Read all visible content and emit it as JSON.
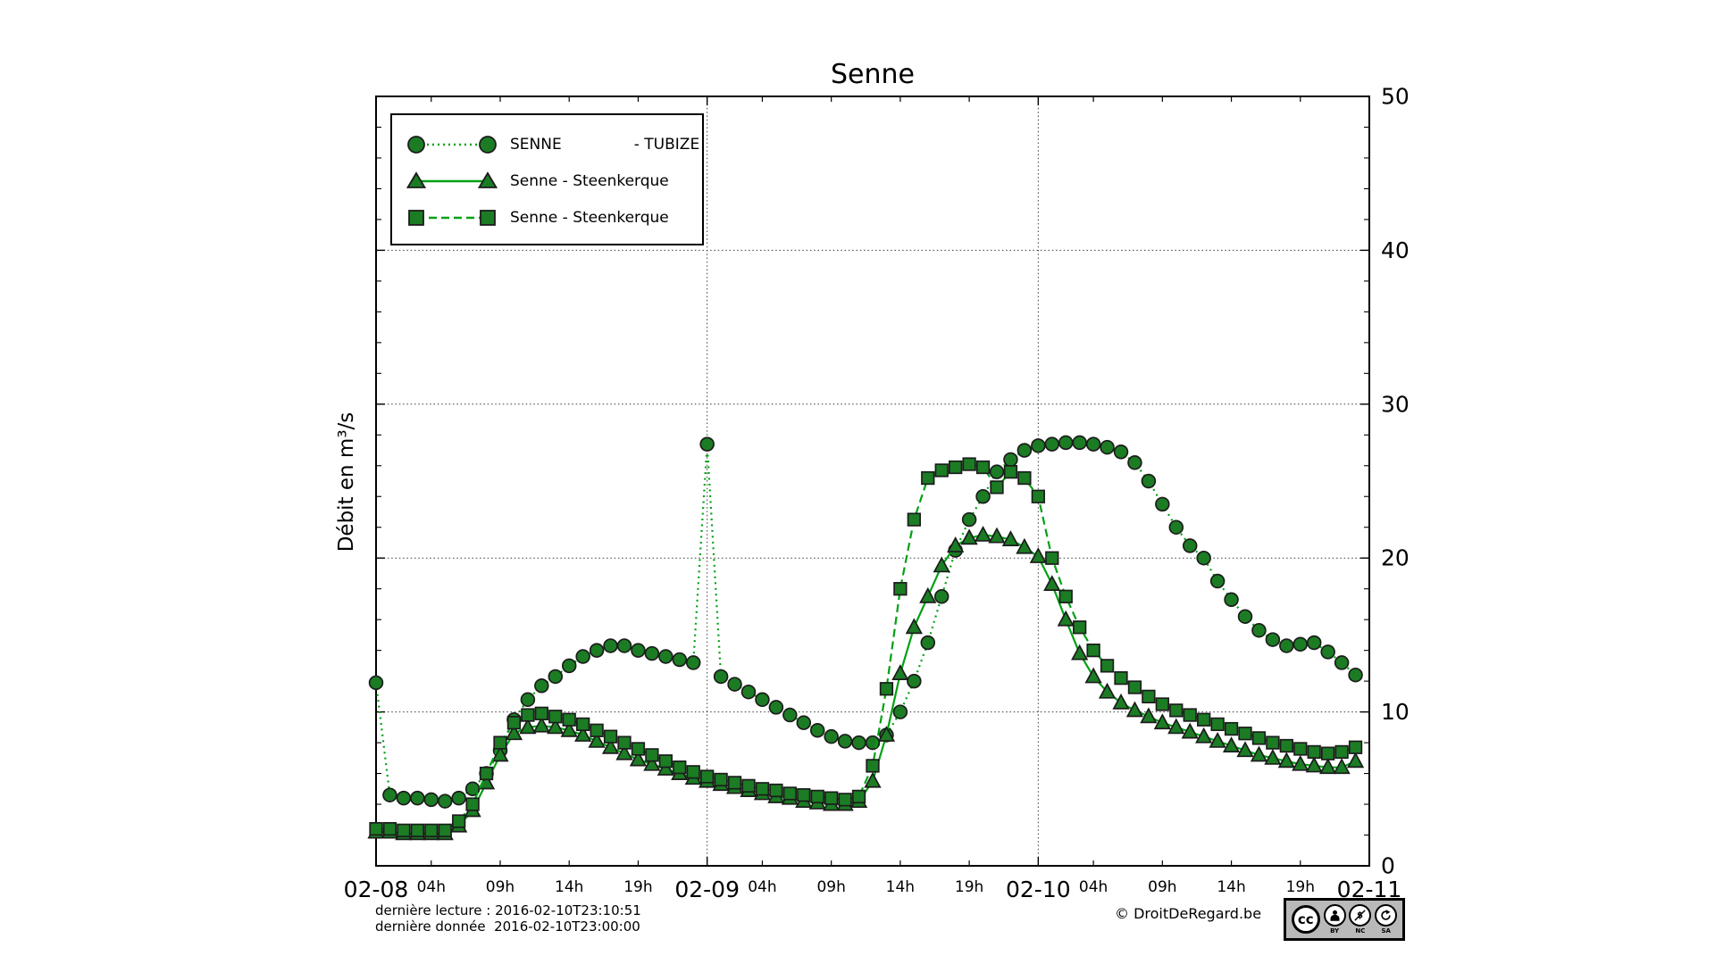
{
  "title": "Senne",
  "y_axis": {
    "label": "Débit en m³/s",
    "ticks": [
      0,
      10,
      20,
      30,
      40,
      50
    ],
    "min": 0,
    "max": 50,
    "minor_step": 2,
    "grid_at": [
      10,
      20,
      30,
      40
    ]
  },
  "x_axis": {
    "day_labels": [
      "02-08",
      "02-09",
      "02-10",
      "02-11"
    ],
    "hour_labels": [
      "04h",
      "09h",
      "14h",
      "19h"
    ],
    "hour_positions": [
      4,
      9,
      14,
      19
    ],
    "days_span": 3
  },
  "legend": {
    "items": [
      {
        "label": "SENNE               - TUBIZE",
        "marker": "circle",
        "linestyle": "dotted"
      },
      {
        "label": "Senne - Steenkerque",
        "marker": "triangle",
        "linestyle": "solid"
      },
      {
        "label": "Senne - Steenkerque",
        "marker": "square",
        "linestyle": "dashed"
      }
    ]
  },
  "footer": {
    "line1": "dernière lecture : 2016-02-10T23:10:51",
    "line2": "dernière donnée  2016-02-10T23:00:00",
    "copyright": "© DroitDeRegard.be",
    "cc_logo": "cc",
    "cc_terms": [
      "BY",
      "NC",
      "SA"
    ]
  },
  "colors": {
    "line": "#00a113",
    "marker_fill": "#1b7c24",
    "marker_edge": "#1c1c1c",
    "grid": "#3a3a3a",
    "frame": "#000000"
  },
  "chart_data": {
    "type": "line",
    "title": "Senne",
    "xlabel": "",
    "ylabel": "Débit en m³/s",
    "ylim": [
      0,
      50
    ],
    "x_start": "2016-02-08T00:00",
    "x_end": "2016-02-11T00:00",
    "x_unit": "hours_since_02-08T00:00",
    "series": [
      {
        "name": "SENNE - TUBIZE",
        "marker": "circle",
        "linestyle": "dotted",
        "values": [
          11.9,
          4.6,
          4.4,
          4.4,
          4.3,
          4.2,
          4.4,
          5.0,
          6.0,
          7.5,
          9.5,
          10.8,
          11.7,
          12.3,
          13.0,
          13.6,
          14.0,
          14.3,
          14.3,
          14.0,
          13.8,
          13.6,
          13.4,
          13.2,
          27.4,
          12.3,
          11.8,
          11.3,
          10.8,
          10.3,
          9.8,
          9.3,
          8.8,
          8.4,
          8.1,
          8.0,
          8.0,
          8.5,
          10.0,
          12.0,
          14.5,
          17.5,
          20.5,
          22.5,
          24.0,
          25.6,
          26.4,
          27.0,
          27.3,
          27.4,
          27.5,
          27.5,
          27.4,
          27.2,
          26.9,
          26.2,
          25.0,
          23.5,
          22.0,
          20.8,
          20.0,
          18.5,
          17.3,
          16.2,
          15.3,
          14.7,
          14.3,
          14.4,
          14.5,
          13.9,
          13.2,
          12.4
        ]
      },
      {
        "name": "Senne - Steenkerque",
        "marker": "triangle",
        "linestyle": "solid",
        "values": [
          2.2,
          2.2,
          2.1,
          2.1,
          2.1,
          2.1,
          2.6,
          3.6,
          5.4,
          7.2,
          8.6,
          9.0,
          9.1,
          9.0,
          8.8,
          8.5,
          8.1,
          7.7,
          7.3,
          6.9,
          6.6,
          6.3,
          6.0,
          5.7,
          5.5,
          5.3,
          5.1,
          4.9,
          4.7,
          4.5,
          4.4,
          4.2,
          4.1,
          4.0,
          4.0,
          4.2,
          5.5,
          8.5,
          12.5,
          15.5,
          17.5,
          19.5,
          20.8,
          21.3,
          21.5,
          21.4,
          21.2,
          20.7,
          20.1,
          18.3,
          16.0,
          13.8,
          12.3,
          11.3,
          10.6,
          10.1,
          9.7,
          9.3,
          9.0,
          8.7,
          8.4,
          8.1,
          7.8,
          7.5,
          7.2,
          7.0,
          6.8,
          6.6,
          6.5,
          6.4,
          6.4,
          6.8
        ]
      },
      {
        "name": "Senne - Steenkerque",
        "marker": "square",
        "linestyle": "dashed",
        "values": [
          2.4,
          2.4,
          2.3,
          2.3,
          2.3,
          2.3,
          2.9,
          4.0,
          6.0,
          8.0,
          9.3,
          9.8,
          9.9,
          9.7,
          9.5,
          9.2,
          8.8,
          8.4,
          8.0,
          7.6,
          7.2,
          6.8,
          6.4,
          6.1,
          5.8,
          5.6,
          5.4,
          5.2,
          5.0,
          4.9,
          4.7,
          4.6,
          4.5,
          4.4,
          4.3,
          4.5,
          6.5,
          11.5,
          18.0,
          22.5,
          25.2,
          25.7,
          25.9,
          26.1,
          25.9,
          24.6,
          25.6,
          25.2,
          24.0,
          20.0,
          17.5,
          15.5,
          14.0,
          13.0,
          12.2,
          11.6,
          11.0,
          10.5,
          10.1,
          9.8,
          9.5,
          9.2,
          8.9,
          8.6,
          8.3,
          8.0,
          7.8,
          7.6,
          7.4,
          7.3,
          7.4,
          7.7
        ]
      }
    ]
  }
}
